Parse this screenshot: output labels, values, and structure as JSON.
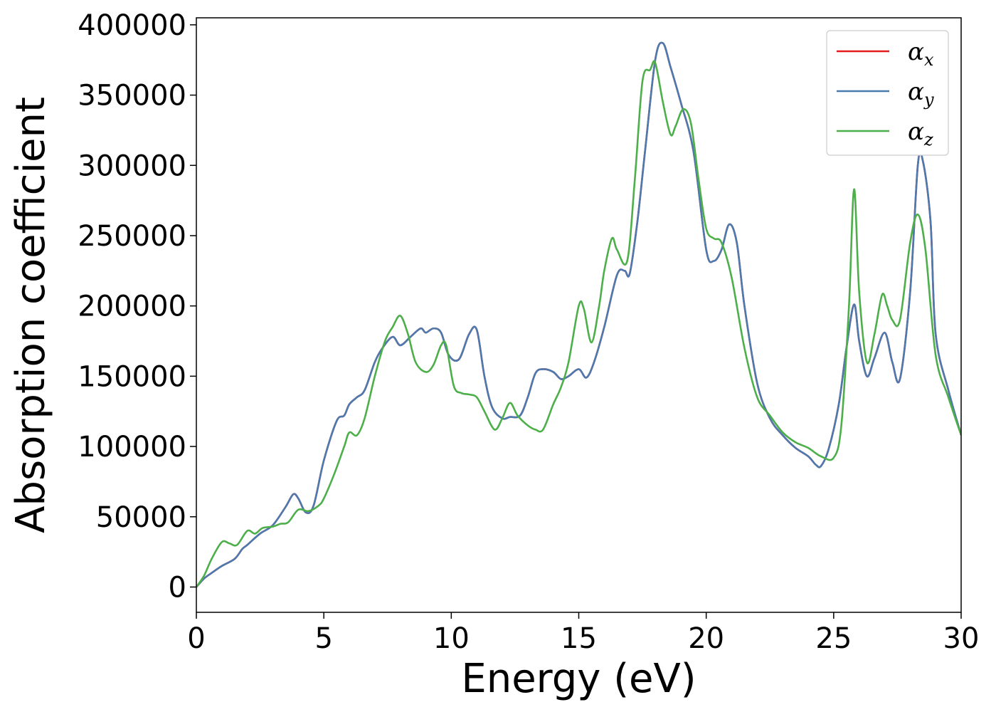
{
  "chart_data": {
    "type": "line",
    "title": "",
    "xlabel": "Energy (eV)",
    "ylabel": "Absorption coefficient",
    "xlim": [
      0,
      30
    ],
    "ylim": [
      -18000,
      405000
    ],
    "xticks": [
      0,
      5,
      10,
      15,
      20,
      25,
      30
    ],
    "yticks": [
      0,
      50000,
      100000,
      150000,
      200000,
      250000,
      300000,
      350000,
      400000
    ],
    "grid": false,
    "legend": "top-right",
    "series": [
      {
        "name": "α_x",
        "legend_symbol": "α",
        "legend_sub": "x",
        "color": "#e41a1c",
        "x": [
          0,
          0.3,
          0.6,
          1.0,
          1.5,
          1.8,
          2.0,
          2.5,
          3.0,
          3.5,
          3.8,
          4.0,
          4.3,
          4.6,
          5.0,
          5.5,
          5.8,
          6.0,
          6.3,
          6.6,
          7.0,
          7.3,
          7.7,
          8.0,
          8.4,
          8.8,
          9.0,
          9.3,
          9.6,
          9.9,
          10.3,
          10.7,
          11.0,
          11.3,
          11.6,
          12.0,
          12.3,
          12.7,
          13.0,
          13.3,
          13.6,
          14.0,
          14.3,
          14.6,
          15.0,
          15.3,
          15.6,
          16.0,
          16.5,
          16.8,
          17.0,
          17.3,
          17.6,
          18.0,
          18.3,
          18.6,
          19.0,
          19.5,
          20.0,
          20.3,
          20.6,
          20.9,
          21.2,
          21.5,
          22.0,
          22.5,
          23.0,
          23.5,
          24.0,
          24.3,
          24.5,
          24.8,
          25.2,
          25.5,
          25.8,
          26.0,
          26.3,
          26.6,
          27.0,
          27.3,
          27.6,
          28.0,
          28.3,
          28.5,
          28.8,
          29.0,
          29.5,
          30.0
        ],
        "y": [
          0,
          6000,
          10000,
          15000,
          20000,
          27000,
          30000,
          38000,
          44000,
          57000,
          66000,
          63000,
          53000,
          58000,
          90000,
          118000,
          122000,
          130000,
          135000,
          140000,
          160000,
          170000,
          178000,
          172000,
          178000,
          184000,
          181000,
          184000,
          181000,
          165000,
          162000,
          180000,
          183000,
          150000,
          128000,
          120000,
          121000,
          122000,
          135000,
          152000,
          155000,
          153000,
          148000,
          150000,
          155000,
          149000,
          160000,
          185000,
          222000,
          225000,
          223000,
          260000,
          310000,
          375000,
          387000,
          370000,
          345000,
          310000,
          240000,
          232000,
          240000,
          258000,
          245000,
          200000,
          145000,
          120000,
          108000,
          99000,
          93000,
          87000,
          86000,
          98000,
          130000,
          170000,
          201000,
          175000,
          150000,
          163000,
          181000,
          160000,
          148000,
          210000,
          300000,
          303000,
          260000,
          180000,
          140000,
          108000
        ]
      },
      {
        "name": "α_y",
        "legend_symbol": "α",
        "legend_sub": "y",
        "color": "#4d7aae",
        "x": [
          0,
          0.3,
          0.6,
          1.0,
          1.5,
          1.8,
          2.0,
          2.5,
          3.0,
          3.5,
          3.8,
          4.0,
          4.3,
          4.6,
          5.0,
          5.5,
          5.8,
          6.0,
          6.3,
          6.6,
          7.0,
          7.3,
          7.7,
          8.0,
          8.4,
          8.8,
          9.0,
          9.3,
          9.6,
          9.9,
          10.3,
          10.7,
          11.0,
          11.3,
          11.6,
          12.0,
          12.3,
          12.7,
          13.0,
          13.3,
          13.6,
          14.0,
          14.3,
          14.6,
          15.0,
          15.3,
          15.6,
          16.0,
          16.5,
          16.8,
          17.0,
          17.3,
          17.6,
          18.0,
          18.3,
          18.6,
          19.0,
          19.5,
          20.0,
          20.3,
          20.6,
          20.9,
          21.2,
          21.5,
          22.0,
          22.5,
          23.0,
          23.5,
          24.0,
          24.3,
          24.5,
          24.8,
          25.2,
          25.5,
          25.8,
          26.0,
          26.3,
          26.6,
          27.0,
          27.3,
          27.6,
          28.0,
          28.3,
          28.5,
          28.8,
          29.0,
          29.5,
          30.0
        ],
        "y": [
          0,
          6000,
          10000,
          15000,
          20000,
          27000,
          30000,
          38000,
          44000,
          57000,
          66000,
          63000,
          53000,
          58000,
          90000,
          118000,
          122000,
          130000,
          135000,
          140000,
          160000,
          170000,
          178000,
          172000,
          178000,
          184000,
          181000,
          184000,
          181000,
          165000,
          162000,
          180000,
          183000,
          150000,
          128000,
          120000,
          121000,
          122000,
          135000,
          152000,
          155000,
          153000,
          148000,
          150000,
          155000,
          149000,
          160000,
          185000,
          222000,
          225000,
          223000,
          260000,
          310000,
          375000,
          387000,
          370000,
          345000,
          310000,
          240000,
          232000,
          240000,
          258000,
          245000,
          200000,
          145000,
          120000,
          108000,
          99000,
          93000,
          87000,
          86000,
          98000,
          130000,
          170000,
          201000,
          175000,
          150000,
          163000,
          181000,
          160000,
          148000,
          210000,
          300000,
          303000,
          260000,
          180000,
          140000,
          108000
        ]
      },
      {
        "name": "α_z",
        "legend_symbol": "α",
        "legend_sub": "z",
        "color": "#4daf4a",
        "x": [
          0,
          0.3,
          0.6,
          1.0,
          1.3,
          1.6,
          2.0,
          2.3,
          2.6,
          3.0,
          3.3,
          3.6,
          4.0,
          4.4,
          4.8,
          5.0,
          5.4,
          5.8,
          6.0,
          6.3,
          6.6,
          7.0,
          7.4,
          7.7,
          8.0,
          8.3,
          8.6,
          9.0,
          9.3,
          9.6,
          9.8,
          10.1,
          10.4,
          10.7,
          11.0,
          11.3,
          11.7,
          12.0,
          12.3,
          12.6,
          13.0,
          13.3,
          13.6,
          14.0,
          14.3,
          14.6,
          15.0,
          15.2,
          15.5,
          15.8,
          16.0,
          16.3,
          16.5,
          16.9,
          17.2,
          17.5,
          17.8,
          18.0,
          18.3,
          18.6,
          18.8,
          19.1,
          19.4,
          19.7,
          20.0,
          20.3,
          20.6,
          21.0,
          21.5,
          22.0,
          22.5,
          23.0,
          23.5,
          24.0,
          24.5,
          25.0,
          25.3,
          25.6,
          25.8,
          26.0,
          26.3,
          26.6,
          26.9,
          27.1,
          27.3,
          27.6,
          28.0,
          28.3,
          28.6,
          29.0,
          29.5,
          30.0
        ],
        "y": [
          0,
          8000,
          20000,
          32000,
          31000,
          30000,
          40000,
          38000,
          42000,
          43000,
          45000,
          46000,
          55000,
          54000,
          58000,
          63000,
          80000,
          100000,
          110000,
          108000,
          120000,
          150000,
          175000,
          185000,
          193000,
          180000,
          160000,
          153000,
          158000,
          172000,
          172000,
          143000,
          138000,
          137000,
          135000,
          125000,
          112000,
          120000,
          131000,
          122000,
          115000,
          112000,
          112000,
          130000,
          142000,
          160000,
          200000,
          198000,
          174000,
          200000,
          225000,
          248000,
          240000,
          232000,
          290000,
          360000,
          368000,
          373000,
          345000,
          322000,
          328000,
          340000,
          330000,
          290000,
          255000,
          248000,
          245000,
          220000,
          170000,
          135000,
          122000,
          110000,
          103000,
          99000,
          93000,
          92000,
          115000,
          200000,
          283000,
          210000,
          160000,
          180000,
          208000,
          200000,
          190000,
          190000,
          245000,
          265000,
          240000,
          165000,
          135000,
          108000
        ]
      }
    ]
  }
}
